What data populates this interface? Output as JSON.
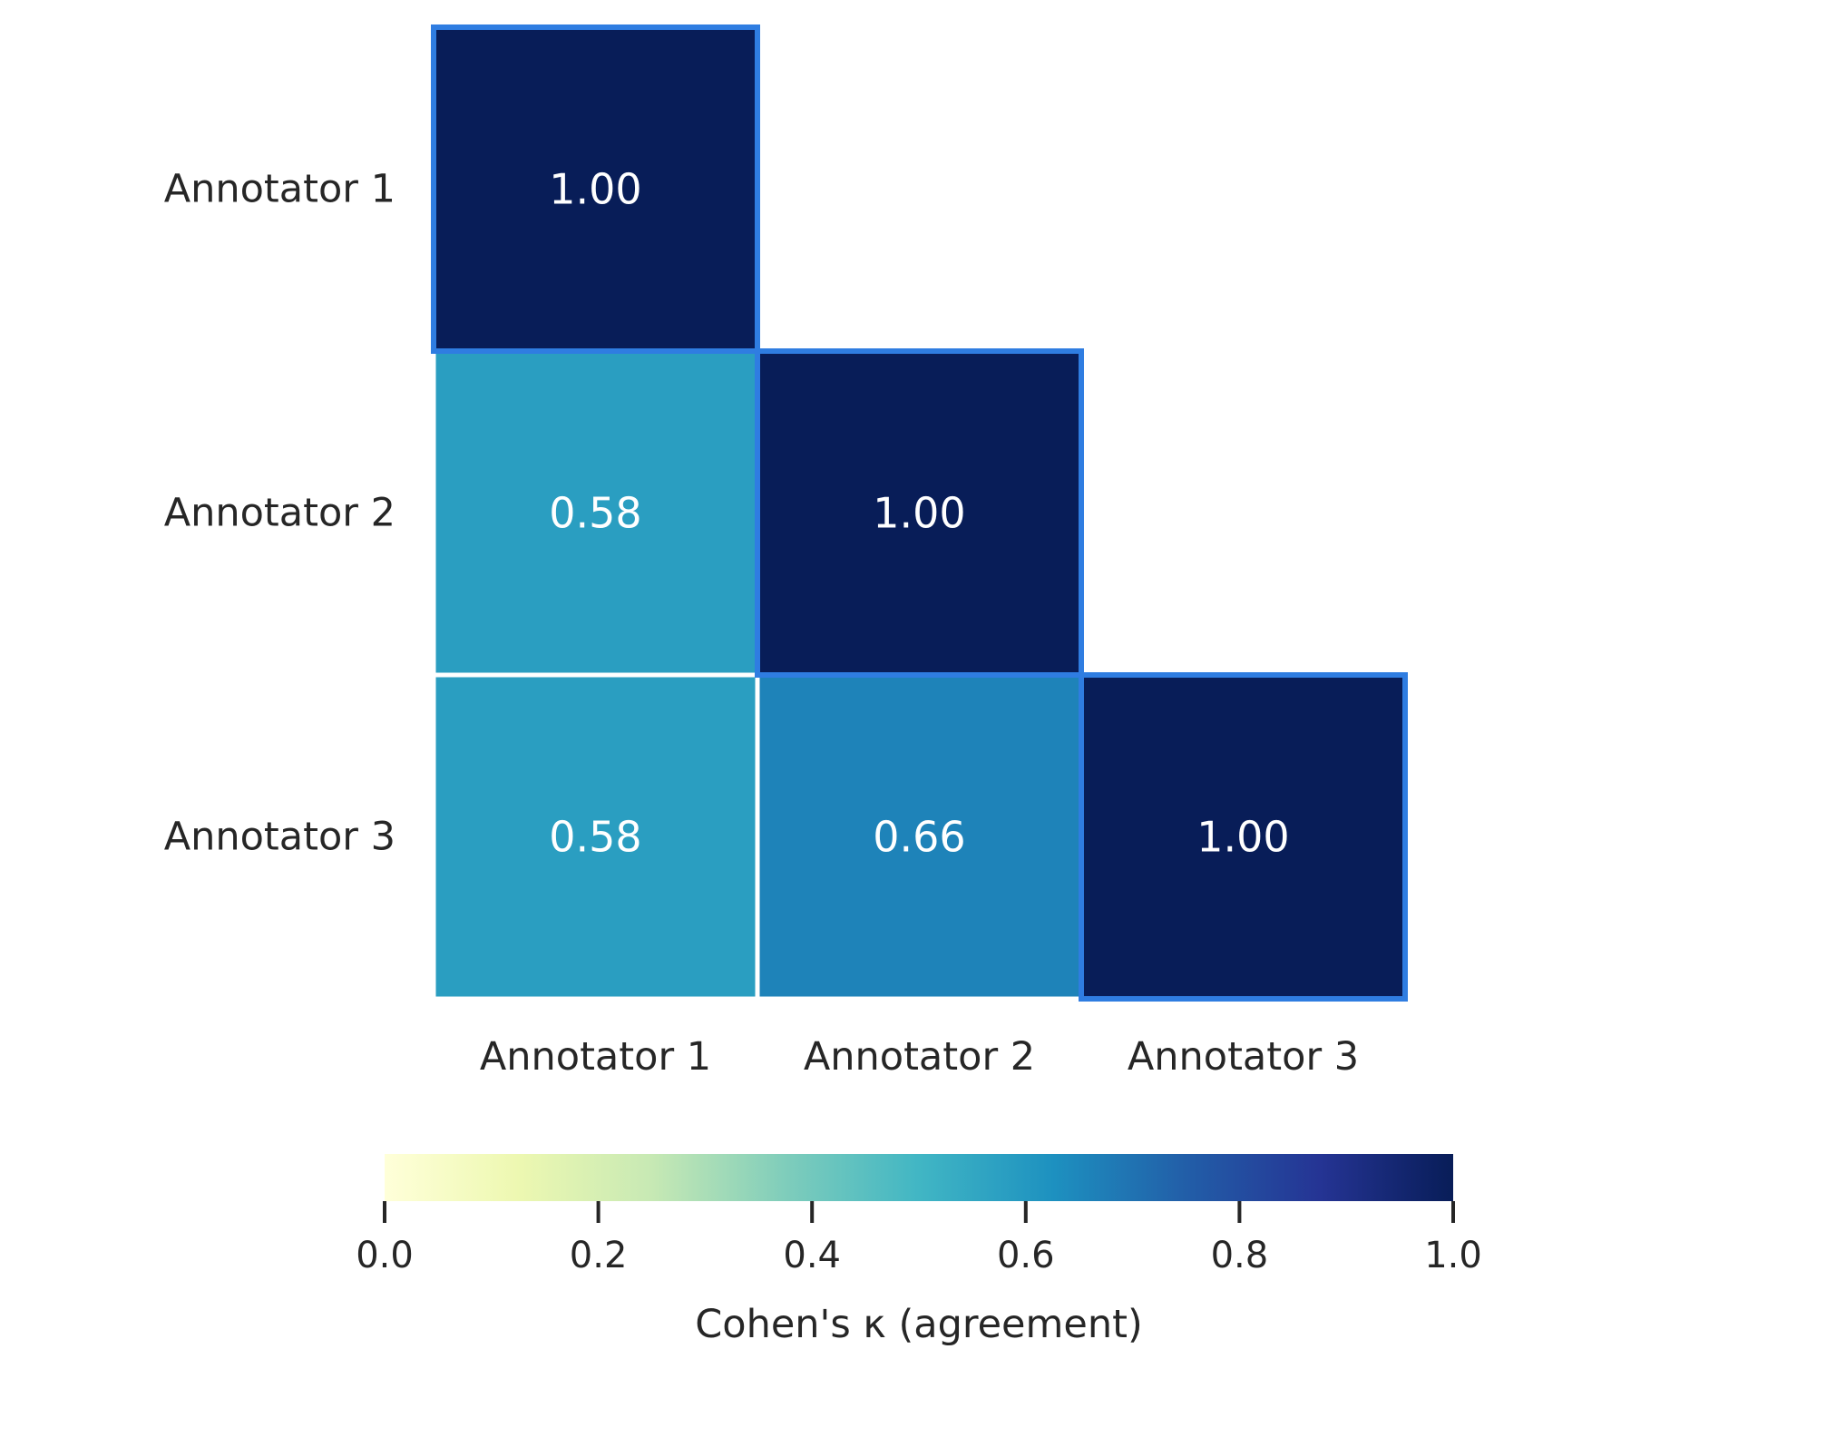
{
  "chart_data": {
    "type": "heatmap",
    "title": "",
    "mask": "upper-triangle",
    "row_labels": [
      "Annotator 1",
      "Annotator 2",
      "Annotator 3"
    ],
    "col_labels": [
      "Annotator 1",
      "Annotator 2",
      "Annotator 3"
    ],
    "values": [
      [
        1.0,
        null,
        null
      ],
      [
        0.58,
        1.0,
        null
      ],
      [
        0.58,
        0.66,
        1.0
      ]
    ],
    "value_format": "2 decimals",
    "highlight": "diagonal cells",
    "highlight_color": "#2f7de1",
    "colormap": "YlGnBu",
    "colorbar": {
      "orientation": "horizontal",
      "placement": "bottom",
      "label": "Cohen's κ (agreement)",
      "range": [
        0.0,
        1.0
      ],
      "ticks": [
        0.0,
        0.2,
        0.4,
        0.6,
        0.8,
        1.0
      ],
      "tick_labels": [
        "0.0",
        "0.2",
        "0.4",
        "0.6",
        "0.8",
        "1.0"
      ]
    },
    "colormap_stops": [
      [
        0.0,
        "#ffffd9"
      ],
      [
        0.125,
        "#edf8b1"
      ],
      [
        0.25,
        "#c7e9b4"
      ],
      [
        0.375,
        "#7fcdbb"
      ],
      [
        0.5,
        "#41b6c4"
      ],
      [
        0.625,
        "#1d91c0"
      ],
      [
        0.75,
        "#225ea8"
      ],
      [
        0.875,
        "#253494"
      ],
      [
        1.0,
        "#081d58"
      ]
    ],
    "text_color_on_cells": "#ffffff",
    "label_color": "#262626",
    "grid": false
  }
}
